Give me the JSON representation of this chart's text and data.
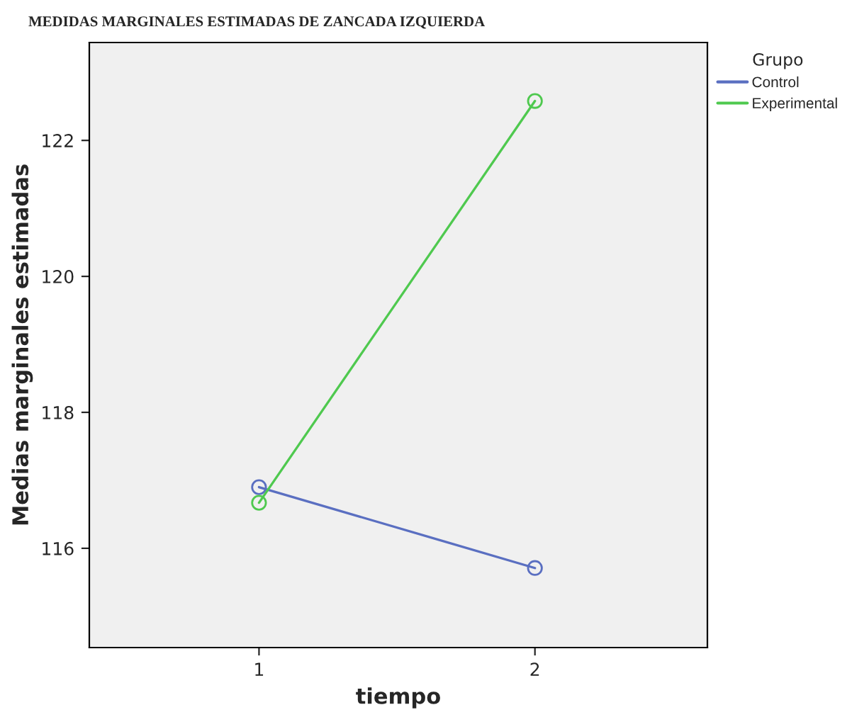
{
  "chart_data": {
    "type": "line",
    "title": "MEDIDAS MARGINALES ESTIMADAS DE ZANCADA IZQUIERDA",
    "xlabel": "tiempo",
    "ylabel": "Medias marginales estimadas",
    "legend_title": "Grupo",
    "categories": [
      "1",
      "2"
    ],
    "series": [
      {
        "name": "Control",
        "color": "#5a6fc1",
        "values": [
          116.9,
          115.71
        ]
      },
      {
        "name": "Experimental",
        "color": "#4fc94f",
        "values": [
          116.67,
          122.58
        ]
      }
    ],
    "ylim": [
      114.54,
      123.44
    ],
    "yticks": [
      116,
      118,
      120,
      122
    ],
    "marker": "circle",
    "line_style": "solid",
    "legend": "top right",
    "grid": false
  }
}
